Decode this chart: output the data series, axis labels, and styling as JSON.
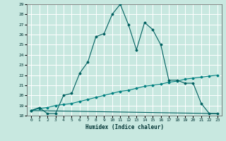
{
  "xlabel": "Humidex (Indice chaleur)",
  "bg_color": "#c8e8e0",
  "grid_color": "#ffffff",
  "line_color1": "#006060",
  "line_color2": "#008080",
  "xlim": [
    -0.5,
    23.5
  ],
  "ylim": [
    18,
    29
  ],
  "xticks": [
    0,
    1,
    2,
    3,
    4,
    5,
    6,
    7,
    8,
    9,
    10,
    11,
    12,
    13,
    14,
    15,
    16,
    17,
    18,
    19,
    20,
    21,
    22,
    23
  ],
  "yticks": [
    18,
    19,
    20,
    21,
    22,
    23,
    24,
    25,
    26,
    27,
    28,
    29
  ],
  "curve1_x": [
    0,
    1,
    2,
    3,
    4,
    5,
    6,
    7,
    8,
    9,
    10,
    11,
    12,
    13,
    14,
    15,
    16,
    17,
    18,
    19,
    20,
    21,
    22,
    23
  ],
  "curve1_y": [
    18.5,
    18.8,
    18.2,
    18.2,
    20.0,
    20.2,
    22.2,
    23.3,
    25.8,
    26.1,
    28.0,
    29.0,
    27.0,
    24.5,
    27.2,
    26.5,
    25.0,
    21.5,
    21.5,
    21.2,
    21.2,
    19.2,
    18.2,
    18.2
  ],
  "curve2_x": [
    0,
    1,
    2,
    3,
    4,
    5,
    6,
    7,
    8,
    9,
    10,
    11,
    12,
    13,
    14,
    15,
    16,
    17,
    18,
    19,
    20,
    21,
    22,
    23
  ],
  "curve2_y": [
    18.5,
    18.7,
    18.8,
    19.0,
    19.1,
    19.2,
    19.4,
    19.6,
    19.8,
    20.0,
    20.2,
    20.4,
    20.5,
    20.7,
    20.9,
    21.0,
    21.1,
    21.3,
    21.4,
    21.6,
    21.7,
    21.8,
    21.9,
    22.0
  ],
  "curve3_x": [
    0,
    23
  ],
  "curve3_y": [
    18.5,
    18.2
  ]
}
